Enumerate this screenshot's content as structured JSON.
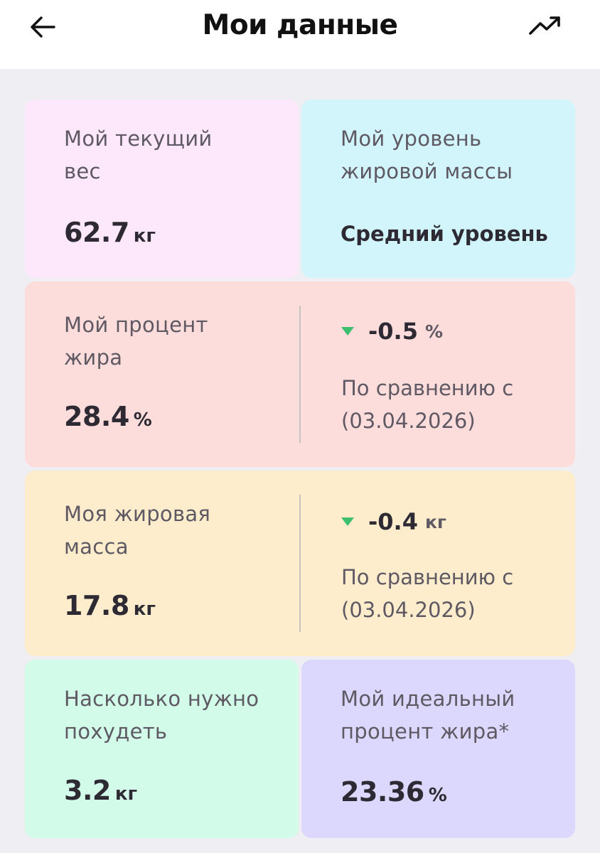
{
  "header": {
    "title": "Мои данные",
    "back_icon": "arrow-left-icon",
    "trend_icon": "trending-up-icon"
  },
  "cards": {
    "weight": {
      "label": "Мой текущий вес",
      "value": "62.7",
      "unit": "кг",
      "color": "#fde8fb"
    },
    "fat_level": {
      "label": "Мой уровень жировой массы",
      "value": "Средний уровень",
      "color": "#d2f5fc"
    },
    "fat_percent": {
      "label": "Мой процент жира",
      "value": "28.4",
      "unit": "%",
      "delta": "-0.5",
      "delta_unit": "%",
      "compare_text": "По сравнению с",
      "compare_date": "(03.04.2026)",
      "color": "#fddcdc"
    },
    "fat_mass": {
      "label": "Моя жировая масса",
      "value": "17.8",
      "unit": "кг",
      "delta": "-0.4",
      "delta_unit": "кг",
      "compare_text": "По сравнению с",
      "compare_date": "(03.04.2026)",
      "color": "#fdedcd"
    },
    "to_lose": {
      "label": "Насколько нужно похудеть",
      "value": "3.2",
      "unit": "кг",
      "color": "#d2fbe9"
    },
    "ideal_fat": {
      "label": "Мой идеальный процент жира*",
      "value": "23.36",
      "unit": "%",
      "color": "#dcd7fc"
    }
  },
  "colors": {
    "delta_down": "#3dbf6f",
    "background": "#efeef3"
  }
}
